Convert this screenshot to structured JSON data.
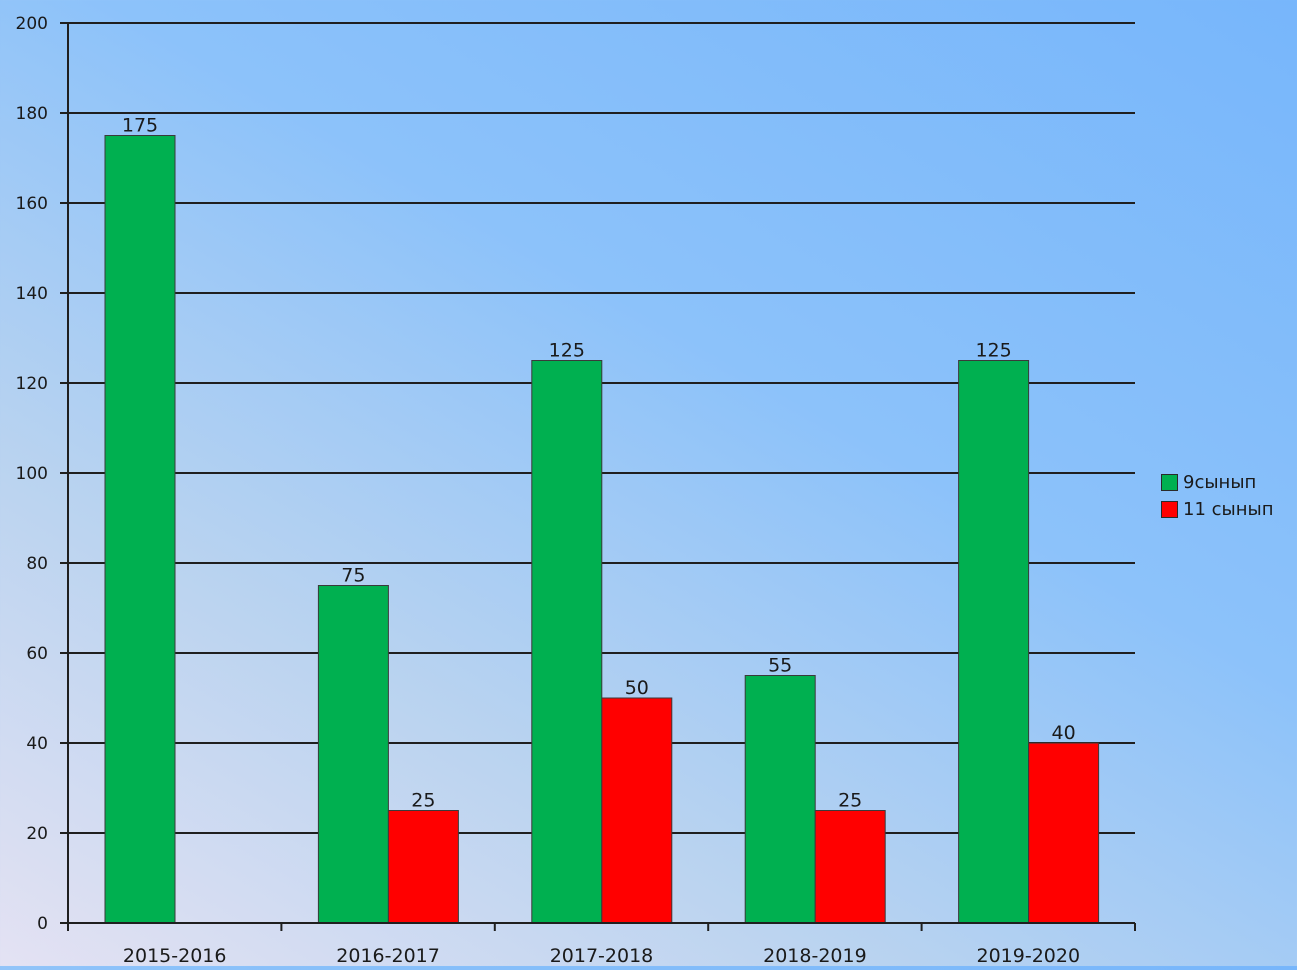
{
  "chart_data": {
    "type": "bar",
    "categories": [
      "2015-2016",
      "2016-2017",
      "2017-2018",
      "2018-2019",
      "2019-2020"
    ],
    "series": [
      {
        "name": "9сынып",
        "color": "#00b050",
        "values": [
          175,
          75,
          125,
          55,
          125
        ]
      },
      {
        "name": "11 сынып",
        "color": "#ff0000",
        "values": [
          null,
          25,
          50,
          25,
          40
        ]
      }
    ],
    "data_labels": [
      [
        "175",
        "75",
        "125",
        "55",
        "125"
      ],
      [
        "",
        "25",
        "50",
        "25",
        "40"
      ]
    ],
    "y_ticks": [
      "0",
      "20",
      "40",
      "60",
      "80",
      "100",
      "120",
      "140",
      "160",
      "180",
      "200"
    ],
    "ylim": [
      0,
      200
    ],
    "grid": true,
    "legend_position": "right"
  }
}
